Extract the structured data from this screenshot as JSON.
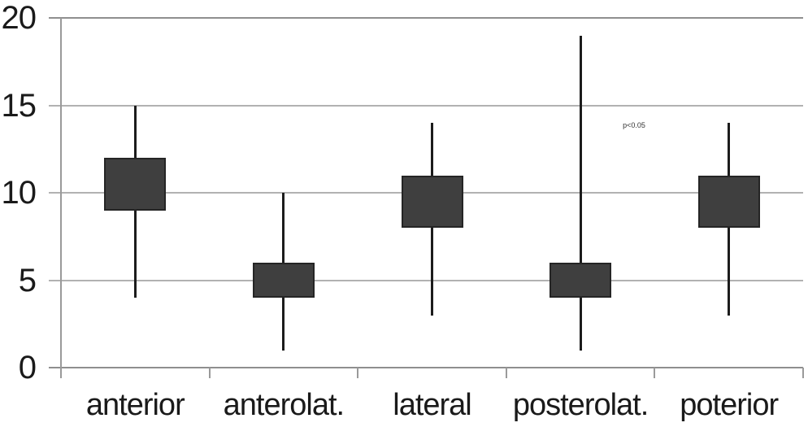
{
  "chart_data": {
    "type": "box",
    "title": "",
    "xlabel": "",
    "ylabel": "",
    "categories": [
      "anterior",
      "anterolat.",
      "lateral",
      "posterolat.",
      "poterior"
    ],
    "boxes": [
      {
        "category": "anterior",
        "whisker_low": 4,
        "box_low": 9,
        "box_high": 12,
        "whisker_high": 15
      },
      {
        "category": "anterolat.",
        "whisker_low": 1,
        "box_low": 4,
        "box_high": 6,
        "whisker_high": 10
      },
      {
        "category": "lateral",
        "whisker_low": 3,
        "box_low": 8,
        "box_high": 11,
        "whisker_high": 14
      },
      {
        "category": "posterolat.",
        "whisker_low": 1,
        "box_low": 4,
        "box_high": 6,
        "whisker_high": 19
      },
      {
        "category": "poterior",
        "whisker_low": 3,
        "box_low": 8,
        "box_high": 11,
        "whisker_high": 14
      }
    ],
    "ylim": [
      0,
      20
    ],
    "yticks": [
      0,
      5,
      10,
      15,
      20
    ],
    "grid": true,
    "legend": false,
    "annotation": {
      "text": "p<0.05",
      "category_index": 3,
      "value": 13.8,
      "dx": 52
    }
  },
  "colors": {
    "background": "#ffffff",
    "box_fill": "#3f3f3f",
    "box_border": "#252525",
    "whisker": "#1c1c1c",
    "grid_outer": "#8f8f8f",
    "grid_inner": "#b2b2b2",
    "axis": "#9a9a9a",
    "text": "#1a1a1a"
  }
}
